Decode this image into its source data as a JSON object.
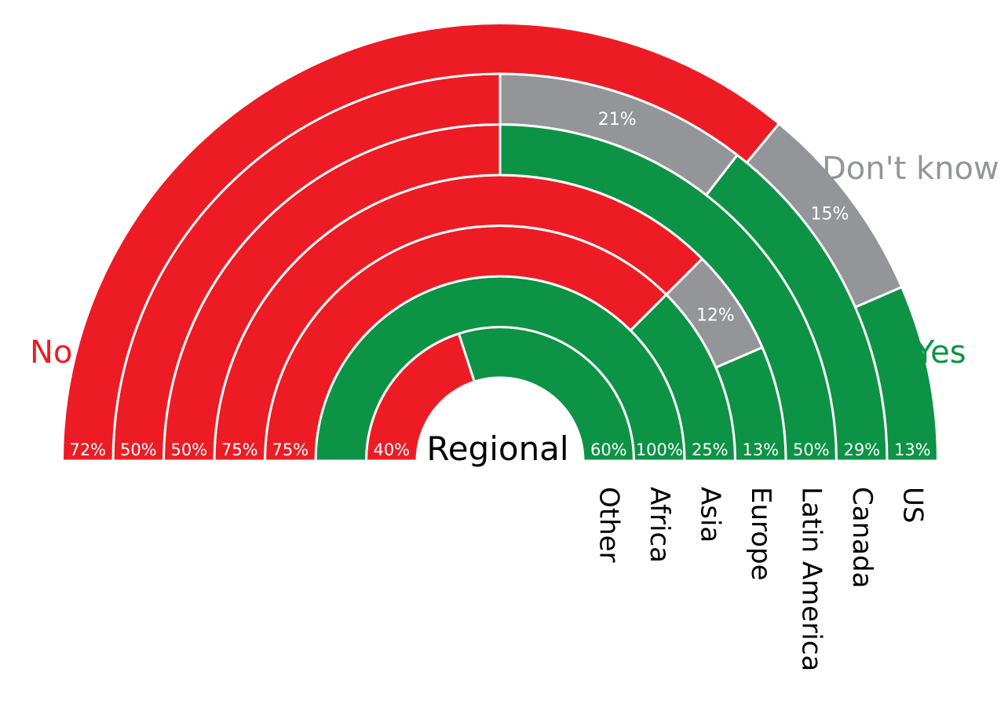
{
  "colors": {
    "no": "#ed1c24",
    "yes": "#0d9345",
    "dont_know": "#939598",
    "center_text": "#000000",
    "region_text": "#000000",
    "pct_text": "#ffffff"
  },
  "legend": {
    "no": "No",
    "yes": "Yes",
    "dont_know": "Don't know"
  },
  "chart_data": {
    "type": "stacked-semicircle-rings",
    "center_label": "Regional",
    "categories": [
      "Other",
      "Africa",
      "Asia",
      "Europe",
      "Latin America",
      "Canada",
      "US"
    ],
    "series_order": [
      "yes",
      "dont_know",
      "no"
    ],
    "rings": [
      {
        "region": "Other",
        "no": 40,
        "yes": 60,
        "dont_know": 0,
        "no_label": "40%",
        "yes_label": "60%",
        "dk_label": ""
      },
      {
        "region": "Africa",
        "no": 0,
        "yes": 100,
        "dont_know": 0,
        "no_label": "",
        "yes_label": "100%",
        "dk_label": ""
      },
      {
        "region": "Asia",
        "no": 75,
        "yes": 25,
        "dont_know": 0,
        "no_label": "75%",
        "yes_label": "25%",
        "dk_label": ""
      },
      {
        "region": "Europe",
        "no": 75,
        "yes": 13,
        "dont_know": 12,
        "no_label": "75%",
        "yes_label": "13%",
        "dk_label": "12%"
      },
      {
        "region": "Latin America",
        "no": 50,
        "yes": 50,
        "dont_know": 0,
        "no_label": "50%",
        "yes_label": "50%",
        "dk_label": ""
      },
      {
        "region": "Canada",
        "no": 50,
        "yes": 29,
        "dont_know": 21,
        "no_label": "50%",
        "yes_label": "29%",
        "dk_label": "21%"
      },
      {
        "region": "US",
        "no": 72,
        "yes": 13,
        "dont_know": 15,
        "no_label": "72%",
        "yes_label": "13%",
        "dk_label": "15%"
      }
    ]
  }
}
